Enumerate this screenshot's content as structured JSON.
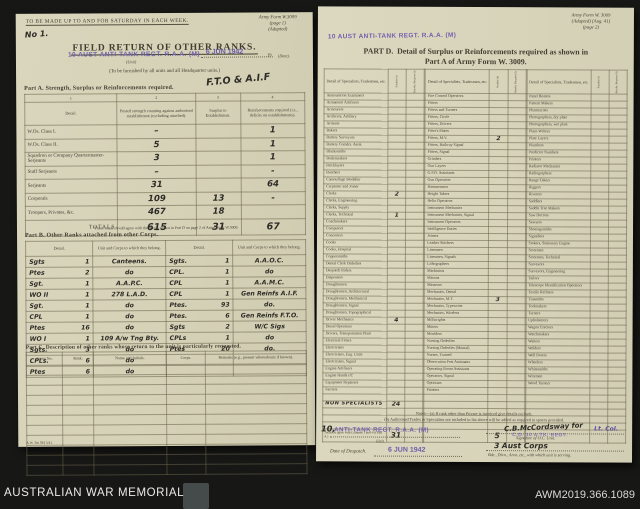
{
  "footer": {
    "left": "AUSTRALIAN WAR MEMORIAL",
    "right": "AWM2019.366.1089"
  },
  "page1": {
    "top_note": "TO BE MADE UP TO AND FOR SATURDAY IN EACH WEEK.",
    "form_ref_line1": "Army Form W.3009",
    "form_ref_line2": "(page 1)",
    "form_ref_line3": "(Adapted)",
    "serial_hw": "No 1.",
    "title": "FIELD RETURN OF OTHER RANKS.",
    "unit_stamp": "10 AUST ANTI-TANK REGT. R.A.A. (M)",
    "unit_caption": "(Unit)",
    "date_stamp": "6 JUN 1942",
    "year_prefix": "19",
    "date_caption": "(Date).",
    "furnish_note": "(To be furnished by all units and all Headquarter units.)",
    "hw_theatre": "F.T.O & A.I.F",
    "part_a": {
      "heading": "Part A.  Strength, Surplus or Reinforcements required.",
      "col_numbers": [
        "1",
        "2",
        "3",
        "4"
      ],
      "headers": [
        "Detail.",
        "Posted strength counting against authorised establishment (excluding attached).",
        "Surplus to Establishment.",
        "Reinforcements required (i.e., deficits on establishments)."
      ],
      "rows": [
        [
          "W.Os. Class I.",
          "–",
          "",
          "1"
        ],
        [
          "W.Os. Class II.",
          "5",
          "",
          "1"
        ],
        [
          "Squadron or Company Quartermaster-Serjeants",
          "3",
          "",
          "1"
        ],
        [
          "Staff Serjeants",
          "–",
          "",
          "-"
        ],
        [
          "Serjeants",
          "31",
          "",
          "64"
        ],
        [
          "Corporals",
          "109",
          "13",
          "-"
        ],
        [
          "Troopers, Privates, &c.",
          "467",
          "18",
          ""
        ]
      ],
      "totals_label": "TOTALS",
      "totals": [
        "615",
        "31",
        "67"
      ],
      "footnote": "*These totals should agree with the details shown in Part D on page 2 of Army Form W.3009."
    },
    "part_b": {
      "heading": "Part B.  Other Ranks attached from other Corps.",
      "headers": [
        "Detail.",
        "Unit and Corps to which they belong.",
        "Detail.",
        "Unit and Corps to which they belong."
      ],
      "rows": [
        [
          "Sgts",
          "1",
          "Canteens.",
          "Sgts.",
          "1",
          "A.A.O.C."
        ],
        [
          "Ptes",
          "2",
          "do",
          "CPL.",
          "1",
          "do"
        ],
        [
          "Sgt.",
          "1",
          "A.A.P.C.",
          "CPL",
          "1",
          "A.A.M.C."
        ],
        [
          "WO II",
          "1",
          "278 L.A.D.",
          "CPL",
          "1",
          "Gen Reinfs A.I.F."
        ],
        [
          "Sgt.",
          "1",
          "do",
          "Ptes.",
          "93",
          "do."
        ],
        [
          "CPL",
          "1",
          "do",
          "Ptes.",
          "6",
          "Gen Reinfs F.T.O."
        ],
        [
          "Ptes",
          "16",
          "do",
          "Sgts",
          "2",
          "W/C Sigs"
        ],
        [
          "WO I",
          "1",
          "109 A/w Tng Bty.",
          "CPLs",
          "1",
          "do"
        ],
        [
          "Sgts.",
          "3",
          "do",
          "Ptes",
          "20",
          "do."
        ],
        [
          "CPLs.",
          "6",
          "do",
          "",
          "",
          ""
        ],
        [
          "Ptes",
          "6",
          "do",
          "",
          "",
          ""
        ]
      ]
    },
    "part_c": {
      "heading": "Part C.  Description of other ranks whose return to the unit is particularly requested.",
      "headers": [
        "Army No.",
        "Rank.",
        "Name and Initials.",
        "Corps.",
        "Remarks (e.g., present whereabouts if known)."
      ],
      "empty_rows": 11
    },
    "print_code": "A.W. 3m 594 5/41."
  },
  "page2": {
    "form_ref_line1": "Army Form W. 3009",
    "form_ref_line2": "(Adapted)  (Aug. 41)",
    "form_ref_line3": "(page 2)",
    "unit_stamp": "10 AUST ANTI-TANK REGT. R.A.A. (M)",
    "title_label": "PART D.",
    "title_text": "Detail of Surplus or Reinforcements required as shown in Part A of Army Form W. 3009.",
    "column_headers": {
      "detail": "Detail of Specialists, Tradesmen, etc.",
      "surplus": "Surplus (a)",
      "reinf": "Reinfts. Required (b)"
    },
    "groups": [
      {
        "rows": [
          "Ammunition Examiners",
          "Armament Artificers",
          "Armourers",
          "Artificers, Artillery",
          "Artisans",
          "Bakers",
          "Battery Surveyors",
          "Battery Comdrs. Assts.",
          "Blacksmiths",
          "Boilermakers",
          "Bricklayers",
          "Butchers",
          "Camouflage Modeller",
          "Carpenter and Joiner",
          [
            "Clerks",
            "2",
            ""
          ],
          "Clerks, Engineering",
          "Clerks, Supply",
          [
            "Clerks, Technical",
            "1",
            ""
          ],
          "Coachmakers",
          "Computors",
          "Concreters",
          "Cooks",
          "Cooks, Hospital",
          "Coppersmiths",
          "Dental Clerk Orderlies",
          "Despatch Riders",
          "Dispensers",
          "Draughtsmen",
          "Draughtsmen, Architectural",
          "Draughtsmen, Mechanical",
          "Draughtsmen, Signal",
          "Draughtsmen, Topographical",
          [
            "Driver Mechanics",
            "4",
            ""
          ],
          "Diesel Operators",
          "Drivers, Transportation Plant",
          "Electrical Fitters",
          "Electricians",
          "Electricians, Eng. Units",
          "Electricians, Signal",
          "Engine Artificers",
          "Engine Hands I/C",
          "Equipment Repairers",
          "Farriers"
        ],
        "blanks1": 1,
        "hw_row": [
          "Non Specialists",
          "24",
          ""
        ],
        "blanks2": 3,
        "totals_label": "Totals (to agree with Columns 1 and 4 of Part A.)",
        "totals": [
          "31",
          ""
        ]
      },
      {
        "rows": [
          "Fire Control Operators",
          "Fitters",
          "Fitters and Turners",
          "Fitters, Circle",
          "Fitters, Drivers",
          "Fitter's Mates",
          [
            "Fitters, M.V.",
            "2",
            ""
          ],
          "Fitters, Railway Signal",
          "Fitters, Signal",
          "Grinders",
          "Gun Layers",
          "G.P.O. Assistants",
          "Gun Operators",
          "Hammermen",
          "Height Takers",
          "Helio Operators",
          "Instrument Mechanics",
          "Instrument Mechanics, Signal",
          "Instrument Operators",
          "Intelligence Duties",
          "Joiners",
          "Leather Stitchers",
          "Linesmen",
          "Linesmen, Signals",
          "Lithographers",
          "Machinists",
          "Masons",
          "Masseurs",
          "Mechanics, Dental",
          [
            "Mechanics, M.T.",
            "3",
            ""
          ],
          "Mechanics, Typewriter",
          "Mechanics, Wireless",
          "Millwrights",
          "Miners",
          "Moulders",
          "Nursing Orderlies",
          "Nursing Orderlies (Mental)",
          "Nurses, Trained",
          "Observation Post Assistants",
          "Operating Room Assistants",
          "Operators, Signal",
          "Opticians",
          "Painters"
        ],
        "blanks1": 5,
        "hw_row": null,
        "blanks2": 0,
        "totals_label": "",
        "totals": [
          "5",
          ""
        ]
      },
      {
        "rows": [
          "Panel Beaters",
          "Pattern Makers",
          "Pharmacists",
          "Photographers, dry plate",
          "Photographers, wet plate",
          "Plain-Writers",
          "Plate Layers",
          "Plumbers",
          "Predictor Numbers",
          "Printers",
          "Radiator Mechanics",
          "Radiographers",
          "Range Takers",
          "Riggers",
          "Riveters",
          "Saddlers",
          "Saddle Tree Makers",
          "Saw Doctors",
          "Sawyers",
          "Shoeingsmiths",
          "Signallers",
          "Stokers, Stationary Engine",
          "Storemen",
          "Storemen, Technical",
          "Surveyors",
          "Surveyors, Engineering",
          "Tailors",
          "Telescope Identification Operators",
          "Textile Refitters",
          "Tinsmiths",
          "Toolmakers",
          "Turners",
          "Upholsterers",
          "Wagon Erectors",
          "Watchmakers",
          "Waiters",
          "Welders",
          "Well Borers",
          "Wheelers",
          "Whitesmiths",
          "Wiremen",
          "Wood Turners"
        ],
        "blanks1": 6,
        "hw_row": null,
        "blanks2": 0,
        "totals_label": "",
        "totals": [
          "",
          ""
        ]
      }
    ],
    "notes_line1": "Notes—(a) If rank other than Private is involved give details on back.",
    "notes_line2": "(b) Authorised Trades or Specialists not included in list above will be added as required in spaces provided.",
    "despatch": {
      "hw_unit_no": "10,",
      "unit_stamp": "ANTI-TANK REGT. R.A.A. (M)",
      "unit_caption": "Unit.",
      "date_label": "Date of Despatch.",
      "date_stamp": "6 JUN 1942",
      "signature_hw": "C.B.McCordsway for",
      "signature_rank": "Lt. Col.",
      "signature_stamp": "C.O. 10 A.TK. REGT.",
      "signature_caption": "Signature of O.C. Unit.",
      "formation_hw": "3 Aust Corps",
      "formation_caption": "Bde., Divn., Area, etc., with which unit is serving."
    }
  }
}
